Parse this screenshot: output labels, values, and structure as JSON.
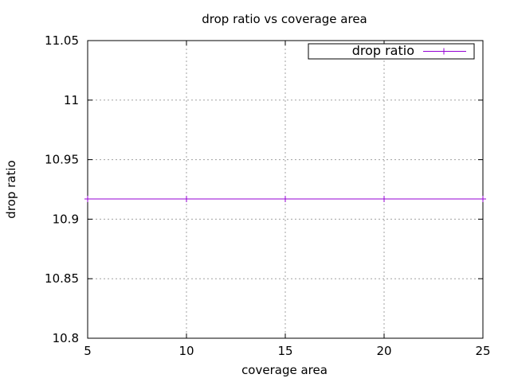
{
  "chart_data": {
    "type": "line",
    "title": "drop ratio vs coverage area",
    "xlabel": "coverage area",
    "ylabel": "drop ratio",
    "xlim": [
      5,
      25
    ],
    "ylim": [
      10.8,
      11.05
    ],
    "x_ticks": [
      5,
      10,
      15,
      20,
      25
    ],
    "y_ticks": [
      10.8,
      10.85,
      10.9,
      10.95,
      11,
      11.05
    ],
    "x_tick_labels": [
      "5",
      "10",
      "15",
      "20",
      "25"
    ],
    "y_tick_labels": [
      "10.8",
      "10.85",
      "10.9",
      "10.95",
      "11",
      "11.05"
    ],
    "grid": true,
    "legend_position": "top-right",
    "series": [
      {
        "name": "drop ratio",
        "color": "#9400d3",
        "marker": "plus",
        "x": [
          5,
          10,
          15,
          20,
          25
        ],
        "y": [
          10.917,
          10.917,
          10.917,
          10.917,
          10.917
        ]
      }
    ]
  }
}
